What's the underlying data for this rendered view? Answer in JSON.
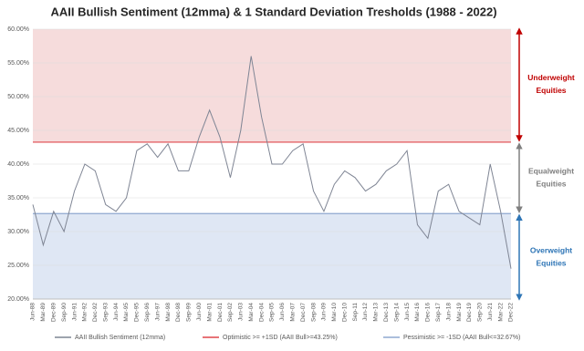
{
  "chart_data": {
    "type": "line",
    "title": "AAII Bullish Sentiment (12mma) & 1 Standard Deviation Tresholds (1988 - 2022)",
    "categories": [
      "Jun-88",
      "Mar-89",
      "Dec-89",
      "Sep-90",
      "Jun-91",
      "Mar-92",
      "Dec-92",
      "Sep-93",
      "Jun-94",
      "Mar-95",
      "Dec-95",
      "Sep-96",
      "Jun-97",
      "Mar-98",
      "Dec-98",
      "Sep-99",
      "Jun-00",
      "Mar-01",
      "Dec-01",
      "Sep-02",
      "Jun-03",
      "Mar-04",
      "Dec-04",
      "Sep-05",
      "Jun-06",
      "Mar-07",
      "Dec-07",
      "Sep-08",
      "Jun-09",
      "Mar-10",
      "Dec-10",
      "Sep-11",
      "Jun-12",
      "Mar-13",
      "Dec-13",
      "Sep-14",
      "Jun-15",
      "Mar-16",
      "Dec-16",
      "Sep-17",
      "Jun-18",
      "Mar-19",
      "Dec-19",
      "Sep-20",
      "Jun-21",
      "Mar-22",
      "Dec-22"
    ],
    "series": [
      {
        "name": "AAII Bullish Sentiment (12mma)",
        "color": "#7f8594",
        "values": [
          34,
          28,
          33,
          30,
          36,
          40,
          39,
          34,
          33,
          35,
          42,
          43,
          41,
          43,
          39,
          39,
          44,
          48,
          44,
          38,
          45,
          56,
          47,
          40,
          40,
          42,
          43,
          36,
          33,
          37,
          39,
          38,
          36,
          37,
          39,
          40,
          42,
          31,
          29,
          36,
          37,
          33,
          32,
          31,
          40,
          33,
          24.5
        ]
      }
    ],
    "thresholds": [
      {
        "name": "Optimistic >= +1SD (AAII Bull>=43.25%)",
        "value": 43.25,
        "color": "#e0474c",
        "band_color": "#f6dcdc"
      },
      {
        "name": "Pessimistic >= -1SD (AAII Bull<=32.67%)",
        "value": 32.67,
        "color": "#8fa9d0",
        "band_color": "#dfe7f4"
      }
    ],
    "ylim": [
      20,
      60
    ],
    "yticks": [
      {
        "value": 20,
        "label": "20.00%"
      },
      {
        "value": 25,
        "label": "25.00%"
      },
      {
        "value": 30,
        "label": "30.00%"
      },
      {
        "value": 35,
        "label": "35.00%"
      },
      {
        "value": 40,
        "label": "40.00%"
      },
      {
        "value": 45,
        "label": "45.00%"
      },
      {
        "value": 50,
        "label": "50.00%"
      },
      {
        "value": 55,
        "label": "55.00%"
      },
      {
        "value": 60,
        "label": "60.00%"
      }
    ],
    "grid": true,
    "annotations": [
      {
        "lines": [
          "Underweight",
          "Equities"
        ],
        "color": "#c00000"
      },
      {
        "lines": [
          "Equalweight",
          "Equities"
        ],
        "color": "#7f7f7f"
      },
      {
        "lines": [
          "Overweight",
          "Equities"
        ],
        "color": "#2e75b6"
      }
    ]
  }
}
